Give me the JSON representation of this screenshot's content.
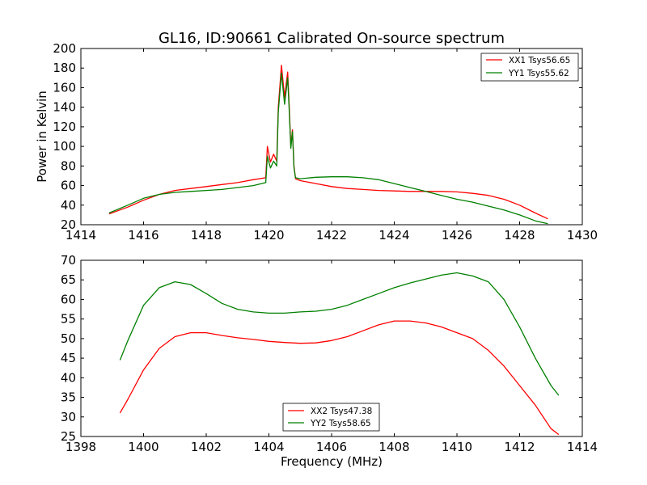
{
  "chart_data": [
    {
      "type": "line",
      "title": "GL16, ID:90661 Calibrated On-source spectrum",
      "xlabel": "",
      "ylabel": "Power in Kelvin",
      "xlim": [
        1414,
        1430
      ],
      "ylim": [
        20,
        200
      ],
      "xticks": [
        "1414",
        "1416",
        "1418",
        "1420",
        "1422",
        "1424",
        "1426",
        "1428",
        "1430"
      ],
      "yticks": [
        "20",
        "40",
        "60",
        "80",
        "100",
        "120",
        "140",
        "160",
        "180",
        "200"
      ],
      "grid": false,
      "legend_position": "top-right",
      "series": [
        {
          "name": "XX1 Tsys56.65",
          "color": "#ff0000",
          "x": [
            1414.9,
            1415.5,
            1416.0,
            1416.5,
            1417.0,
            1417.5,
            1418.0,
            1418.5,
            1419.0,
            1419.5,
            1419.9,
            1419.95,
            1420.05,
            1420.15,
            1420.25,
            1420.3,
            1420.4,
            1420.5,
            1420.6,
            1420.65,
            1420.7,
            1420.75,
            1420.8,
            1420.85,
            1421.0,
            1421.5,
            1422.0,
            1422.5,
            1423.0,
            1423.5,
            1424.0,
            1424.5,
            1425.0,
            1425.5,
            1426.0,
            1426.5,
            1427.0,
            1427.5,
            1428.0,
            1428.5,
            1428.9
          ],
          "y": [
            31,
            38,
            45,
            51,
            55,
            57,
            59,
            61,
            63,
            66,
            68,
            100,
            84,
            92,
            85,
            140,
            183,
            150,
            176,
            140,
            100,
            117,
            80,
            67,
            65,
            62,
            59,
            57,
            56,
            55,
            54.5,
            54,
            54,
            54,
            53.5,
            52,
            50,
            46,
            40,
            32,
            26
          ]
        },
        {
          "name": "YY1 Tsys55.62",
          "color": "#008000",
          "x": [
            1414.9,
            1415.5,
            1416.0,
            1416.5,
            1417.0,
            1417.5,
            1418.0,
            1418.5,
            1419.0,
            1419.5,
            1419.9,
            1419.95,
            1420.05,
            1420.15,
            1420.25,
            1420.3,
            1420.4,
            1420.5,
            1420.6,
            1420.65,
            1420.7,
            1420.75,
            1420.8,
            1420.85,
            1421.0,
            1421.5,
            1422.0,
            1422.5,
            1423.0,
            1423.5,
            1424.0,
            1424.5,
            1425.0,
            1425.5,
            1426.0,
            1426.5,
            1427.0,
            1427.5,
            1428.0,
            1428.5,
            1428.9
          ],
          "y": [
            32,
            40,
            47,
            51,
            53,
            54,
            55,
            56,
            58,
            60,
            63,
            90,
            78,
            85,
            80,
            135,
            175,
            143,
            170,
            135,
            98,
            115,
            78,
            68,
            67,
            68.5,
            69,
            69,
            68,
            66,
            62,
            58,
            54,
            50,
            46,
            43,
            39,
            35,
            30,
            24,
            21
          ]
        }
      ]
    },
    {
      "type": "line",
      "title": "",
      "xlabel": "Frequency (MHz)",
      "ylabel": "",
      "xlim": [
        1398,
        1414
      ],
      "ylim": [
        25,
        70
      ],
      "xticks": [
        "1398",
        "1400",
        "1402",
        "1404",
        "1406",
        "1408",
        "1410",
        "1412",
        "1414"
      ],
      "yticks": [
        "25",
        "30",
        "35",
        "40",
        "45",
        "50",
        "55",
        "60",
        "65",
        "70"
      ],
      "grid": false,
      "legend_position": "lower-center",
      "series": [
        {
          "name": "XX2 Tsys47.38",
          "color": "#ff0000",
          "x": [
            1399.25,
            1399.5,
            1400.0,
            1400.5,
            1401.0,
            1401.5,
            1402.0,
            1402.5,
            1403.0,
            1403.5,
            1404.0,
            1404.5,
            1405.0,
            1405.5,
            1406.0,
            1406.5,
            1407.0,
            1407.5,
            1408.0,
            1408.5,
            1409.0,
            1409.5,
            1410.0,
            1410.5,
            1411.0,
            1411.5,
            1412.0,
            1412.5,
            1413.0,
            1413.25
          ],
          "y": [
            31,
            34.5,
            42,
            47.5,
            50.5,
            51.5,
            51.5,
            50.8,
            50.2,
            49.8,
            49.3,
            49.0,
            48.8,
            48.9,
            49.5,
            50.5,
            52,
            53.5,
            54.5,
            54.5,
            54.0,
            53,
            51.5,
            50,
            47,
            43,
            38,
            33,
            27,
            25.5
          ]
        },
        {
          "name": "YY2 Tsys58.65",
          "color": "#008000",
          "x": [
            1399.25,
            1399.5,
            1400.0,
            1400.5,
            1401.0,
            1401.5,
            1402.0,
            1402.5,
            1403.0,
            1403.5,
            1404.0,
            1404.5,
            1405.0,
            1405.5,
            1406.0,
            1406.5,
            1407.0,
            1407.5,
            1408.0,
            1408.5,
            1409.0,
            1409.5,
            1410.0,
            1410.5,
            1411.0,
            1411.5,
            1412.0,
            1412.5,
            1413.0,
            1413.25
          ],
          "y": [
            44.5,
            49.5,
            58.5,
            63,
            64.5,
            63.8,
            61.5,
            59,
            57.5,
            56.8,
            56.5,
            56.5,
            56.8,
            57,
            57.5,
            58.5,
            60,
            61.5,
            63,
            64.2,
            65.2,
            66.2,
            66.8,
            66,
            64.5,
            60,
            53,
            45,
            38,
            35.5
          ]
        }
      ]
    }
  ]
}
